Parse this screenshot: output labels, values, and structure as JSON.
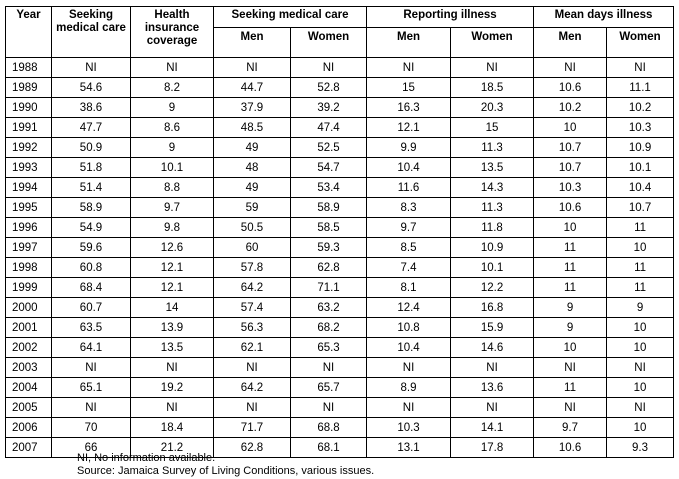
{
  "headers": {
    "year": "Year",
    "seeking_care": "Seeking medical care",
    "health_insurance": "Health insurance coverage",
    "group_seeking": "Seeking medical care",
    "group_reporting": "Reporting illness",
    "group_mean_days": "Mean days illness",
    "men": "Men",
    "women": "Women"
  },
  "rows": [
    [
      "1988",
      "NI",
      "NI",
      "NI",
      "NI",
      "NI",
      "NI",
      "NI",
      "NI"
    ],
    [
      "1989",
      "54.6",
      "8.2",
      "44.7",
      "52.8",
      "15",
      "18.5",
      "10.6",
      "11.1"
    ],
    [
      "1990",
      "38.6",
      "9",
      "37.9",
      "39.2",
      "16.3",
      "20.3",
      "10.2",
      "10.2"
    ],
    [
      "1991",
      "47.7",
      "8.6",
      "48.5",
      "47.4",
      "12.1",
      "15",
      "10",
      "10.3"
    ],
    [
      "1992",
      "50.9",
      "9",
      "49",
      "52.5",
      "9.9",
      "11.3",
      "10.7",
      "10.9"
    ],
    [
      "1993",
      "51.8",
      "10.1",
      "48",
      "54.7",
      "10.4",
      "13.5",
      "10.7",
      "10.1"
    ],
    [
      "1994",
      "51.4",
      "8.8",
      "49",
      "53.4",
      "11.6",
      "14.3",
      "10.3",
      "10.4"
    ],
    [
      "1995",
      "58.9",
      "9.7",
      "59",
      "58.9",
      "8.3",
      "11.3",
      "10.6",
      "10.7"
    ],
    [
      "1996",
      "54.9",
      "9.8",
      "50.5",
      "58.5",
      "9.7",
      "11.8",
      "10",
      "11"
    ],
    [
      "1997",
      "59.6",
      "12.6",
      "60",
      "59.3",
      "8.5",
      "10.9",
      "11",
      "10"
    ],
    [
      "1998",
      "60.8",
      "12.1",
      "57.8",
      "62.8",
      "7.4",
      "10.1",
      "11",
      "11"
    ],
    [
      "1999",
      "68.4",
      "12.1",
      "64.2",
      "71.1",
      "8.1",
      "12.2",
      "11",
      "11"
    ],
    [
      "2000",
      "60.7",
      "14",
      "57.4",
      "63.2",
      "12.4",
      "16.8",
      "9",
      "9"
    ],
    [
      "2001",
      "63.5",
      "13.9",
      "56.3",
      "68.2",
      "10.8",
      "15.9",
      "9",
      "10"
    ],
    [
      "2002",
      "64.1",
      "13.5",
      "62.1",
      "65.3",
      "10.4",
      "14.6",
      "10",
      "10"
    ],
    [
      "2003",
      "NI",
      "NI",
      "NI",
      "NI",
      "NI",
      "NI",
      "NI",
      "NI"
    ],
    [
      "2004",
      "65.1",
      "19.2",
      "64.2",
      "65.7",
      "8.9",
      "13.6",
      "11",
      "10"
    ],
    [
      "2005",
      "NI",
      "NI",
      "NI",
      "NI",
      "NI",
      "NI",
      "NI",
      "NI"
    ],
    [
      "2006",
      "70",
      "18.4",
      "71.7",
      "68.8",
      "10.3",
      "14.1",
      "9.7",
      "10"
    ],
    [
      "2007",
      "66",
      "21.2",
      "62.8",
      "68.1",
      "13.1",
      "17.8",
      "10.6",
      "9.3"
    ]
  ],
  "footnotes": {
    "ni": "NI,  No information available.",
    "source": "Source:  Jamaica Survey of Living Conditions, various issues."
  }
}
